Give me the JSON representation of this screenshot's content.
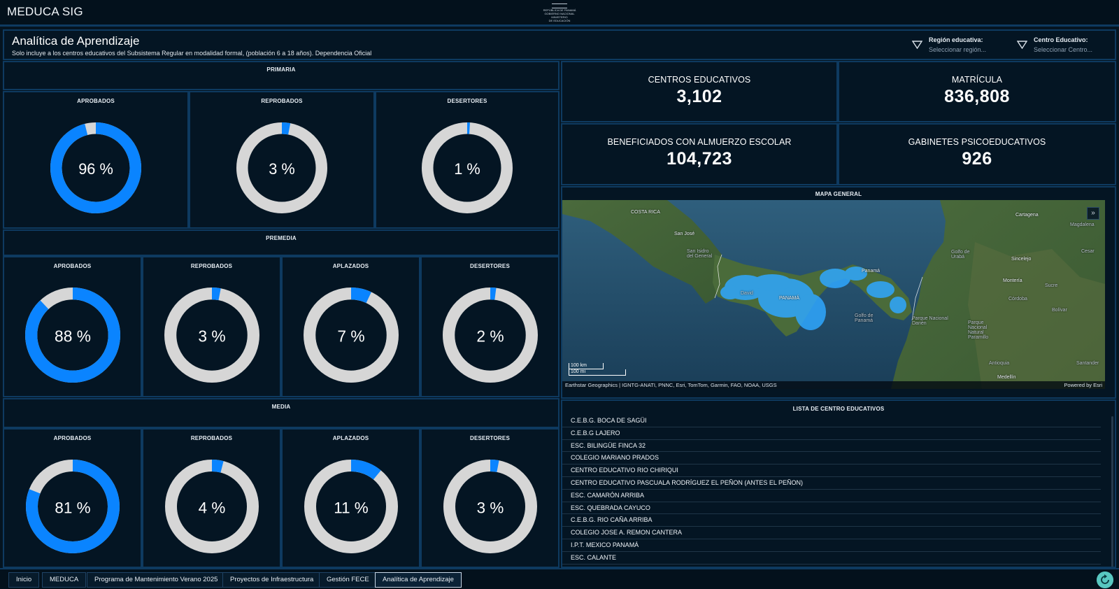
{
  "app": {
    "title": "MEDUCA SIG",
    "logo_lines": [
      "REPÚBLICA DE PANAMÁ",
      "GOBIERNO NACIONAL",
      "MINISTERIO",
      "DE EDUCACIÓN"
    ]
  },
  "header": {
    "title": "Analítica de Aprendizaje",
    "subtitle": "Solo incluye a los centros educativos del Subsistema Regular en modalidad formal, (población 6 a 18 años). Dependencia Oficial",
    "filters": [
      {
        "label": "Región educativa:",
        "placeholder": "Seleccionar región..."
      },
      {
        "label": "Centro Educativo:",
        "placeholder": "Seleccionar Centro..."
      }
    ]
  },
  "colors": {
    "accent": "#0a84ff",
    "ring_track": "#d6d6d6",
    "panel_bg": "#041523",
    "panel_border": "#0e3a60"
  },
  "sections": {
    "primaria": {
      "title": "PRIMARIA",
      "gauges": [
        {
          "label": "APROBADOS",
          "value": 96,
          "display": "96 %"
        },
        {
          "label": "REPROBADOS",
          "value": 3,
          "display": "3 %"
        },
        {
          "label": "DESERTORES",
          "value": 1,
          "display": "1 %"
        }
      ]
    },
    "premedia": {
      "title": "PREMEDIA",
      "gauges": [
        {
          "label": "APROBADOS",
          "value": 88,
          "display": "88 %"
        },
        {
          "label": "REPROBADOS",
          "value": 3,
          "display": "3 %"
        },
        {
          "label": "APLAZADOS",
          "value": 7,
          "display": "7 %"
        },
        {
          "label": "DESERTORES",
          "value": 2,
          "display": "2 %"
        }
      ]
    },
    "media": {
      "title": "MEDIA",
      "gauges": [
        {
          "label": "APROBADOS",
          "value": 81,
          "display": "81 %"
        },
        {
          "label": "REPROBADOS",
          "value": 4,
          "display": "4 %"
        },
        {
          "label": "APLAZADOS",
          "value": 11,
          "display": "11 %"
        },
        {
          "label": "DESERTORES",
          "value": 3,
          "display": "3 %"
        }
      ]
    }
  },
  "kpis": [
    {
      "label": "CENTROS EDUCATIVOS",
      "value": "3,102"
    },
    {
      "label": "MATRÍCULA",
      "value": "836,808"
    },
    {
      "label": "BENEFICIADOS CON ALMUERZO ESCOLAR",
      "value": "104,723"
    },
    {
      "label": "GABINETES PSICOEDUCATIVOS",
      "value": "926"
    }
  ],
  "map": {
    "title": "MAPA GENERAL",
    "labels": {
      "costa_rica": "COSTA RICA",
      "san_jose": "San José",
      "san_isidro": "San Isidro del General",
      "david": "David",
      "panama_country": "PANAMÁ",
      "panama_city": "Panamá",
      "golfo_panama": "Golfo de Panamá",
      "darien": "Parque Nacional Darién",
      "cartagena": "Cartagena",
      "magdalena": "Magdalena",
      "golfo_uraba": "Golfo de Urabá",
      "cesar": "Cesar",
      "sincelejo": "Sincelejo",
      "monteria": "Montería",
      "sucre": "Sucre",
      "cordoba": "Córdoba",
      "bolivar": "Bolívar",
      "paramillo": "Parque Nacional Natural Paramillo",
      "antioquia": "Antioquia",
      "santander": "Santander",
      "medellin": "Medellín"
    },
    "scale_km": "100 km",
    "scale_mi": "100 mi",
    "attribution": "Earthstar Geographics | IGNTG-ANATI, PNNC, Esri, TomTom, Garmin, FAO, NOAA, USGS",
    "powered_by": "Powered by Esri",
    "collapse_icon": "chevron-double-down-icon"
  },
  "centros": {
    "title": "LISTA DE CENTRO EDUCATIVOS",
    "items": [
      "C.E.B.G. BOCA DE SAGÜI",
      "C.E.B.G LAJERO",
      "ESC. BILINGÜE FINCA 32",
      "COLEGIO MARIANO PRADOS",
      "CENTRO EDUCATIVO RIO CHIRIQUI",
      "CENTRO EDUCATIVO PASCUALA RODRÍGUEZ EL PEÑON (ANTES EL PEÑON)",
      "ESC. CAMARÓN ARRIBA",
      "ESC. QUEBRADA CAYUCO",
      "C.E.B.G. RIO CAÑA ARRIBA",
      "COLEGIO JOSE A. REMON CANTERA",
      "I.P.T. MEXICO PANAMÁ",
      "ESC. CALANTE"
    ]
  },
  "tabs": [
    {
      "label": "Inicio",
      "active": false
    },
    {
      "label": "MEDUCA",
      "active": false
    },
    {
      "label": "Programa de Mantenimiento Verano 2025",
      "active": false
    },
    {
      "label": "Proyectos de Infraestructura",
      "active": false
    },
    {
      "label": "Gestión FECE",
      "active": false
    },
    {
      "label": "Analítica de Aprendizaje",
      "active": true
    }
  ],
  "refresh_icon": "refresh-icon"
}
